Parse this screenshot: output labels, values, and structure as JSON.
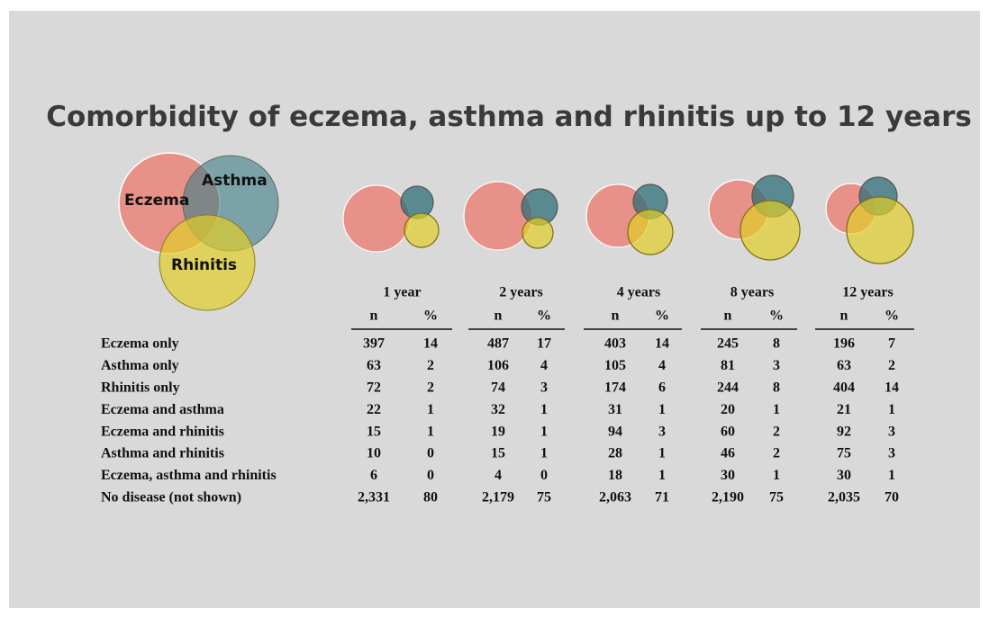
{
  "title": "Comorbidity of eczema, asthma and rhinitis up to 12 years",
  "legend": {
    "eczema": "Eczema",
    "asthma": "Asthma",
    "rhinitis": "Rhinitis"
  },
  "table": {
    "columns": [
      "1 year",
      "2 years",
      "4 years",
      "8 years",
      "12 years"
    ],
    "subheaders": [
      "n",
      "%"
    ],
    "rows": [
      {
        "label": "Eczema only",
        "cells": [
          397,
          14,
          487,
          17,
          403,
          14,
          245,
          8,
          196,
          7
        ]
      },
      {
        "label": "Asthma only",
        "cells": [
          63,
          2,
          106,
          4,
          105,
          4,
          81,
          3,
          63,
          2
        ]
      },
      {
        "label": "Rhinitis only",
        "cells": [
          72,
          2,
          74,
          3,
          174,
          6,
          244,
          8,
          404,
          14
        ]
      },
      {
        "label": "Eczema and asthma",
        "cells": [
          22,
          1,
          32,
          1,
          31,
          1,
          20,
          1,
          21,
          1
        ]
      },
      {
        "label": "Eczema and rhinitis",
        "cells": [
          15,
          1,
          19,
          1,
          94,
          3,
          60,
          2,
          92,
          3
        ]
      },
      {
        "label": "Asthma and rhinitis",
        "cells": [
          10,
          0,
          15,
          1,
          28,
          1,
          46,
          2,
          75,
          3
        ]
      },
      {
        "label": "Eczema, asthma and rhinitis",
        "cells": [
          6,
          0,
          4,
          0,
          18,
          1,
          30,
          1,
          30,
          1
        ]
      },
      {
        "label": "No disease (not shown)",
        "cells": [
          "2,331",
          80,
          "2,179",
          75,
          "2,063",
          71,
          "2,190",
          75,
          "2,035",
          70
        ]
      }
    ]
  }
}
